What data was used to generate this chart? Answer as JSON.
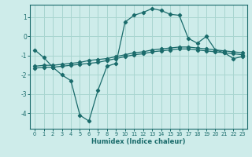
{
  "xlabel": "Humidex (Indice chaleur)",
  "background_color": "#ceecea",
  "grid_color": "#a8d5d0",
  "line_color": "#1a6b6b",
  "xlim": [
    -0.5,
    23.5
  ],
  "ylim": [
    -4.8,
    1.65
  ],
  "xticks": [
    0,
    1,
    2,
    3,
    4,
    5,
    6,
    7,
    8,
    9,
    10,
    11,
    12,
    13,
    14,
    15,
    16,
    17,
    18,
    19,
    20,
    21,
    22,
    23
  ],
  "yticks": [
    -4,
    -3,
    -2,
    -1,
    0,
    1
  ],
  "curve1_x": [
    0,
    1,
    2,
    3,
    4,
    5,
    6,
    7,
    8,
    9,
    10,
    11,
    12,
    13,
    14,
    15,
    16,
    17,
    18,
    19,
    20,
    21,
    22,
    23
  ],
  "curve1_y": [
    -0.7,
    -1.1,
    -1.6,
    -2.0,
    -2.3,
    -4.1,
    -4.4,
    -2.8,
    -1.55,
    -1.4,
    0.75,
    1.1,
    1.25,
    1.45,
    1.35,
    1.15,
    1.1,
    -0.1,
    -0.35,
    0.0,
    -0.7,
    -0.85,
    -1.15,
    -1.05
  ],
  "curve2_x": [
    0,
    1,
    2,
    3,
    4,
    5,
    6,
    7,
    8,
    9,
    10,
    11,
    12,
    13,
    14,
    15,
    16,
    17,
    18,
    19,
    20,
    21,
    22,
    23
  ],
  "curve2_y": [
    -1.55,
    -1.5,
    -1.5,
    -1.45,
    -1.4,
    -1.35,
    -1.25,
    -1.2,
    -1.15,
    -1.05,
    -0.95,
    -0.85,
    -0.8,
    -0.7,
    -0.65,
    -0.6,
    -0.55,
    -0.55,
    -0.6,
    -0.65,
    -0.7,
    -0.75,
    -0.8,
    -0.85
  ],
  "curve3_x": [
    0,
    1,
    2,
    3,
    4,
    5,
    6,
    7,
    8,
    9,
    10,
    11,
    12,
    13,
    14,
    15,
    16,
    17,
    18,
    19,
    20,
    21,
    22,
    23
  ],
  "curve3_y": [
    -1.65,
    -1.6,
    -1.6,
    -1.55,
    -1.5,
    -1.45,
    -1.4,
    -1.35,
    -1.25,
    -1.15,
    -1.05,
    -0.95,
    -0.9,
    -0.8,
    -0.75,
    -0.7,
    -0.65,
    -0.65,
    -0.7,
    -0.75,
    -0.8,
    -0.85,
    -0.9,
    -0.95
  ]
}
